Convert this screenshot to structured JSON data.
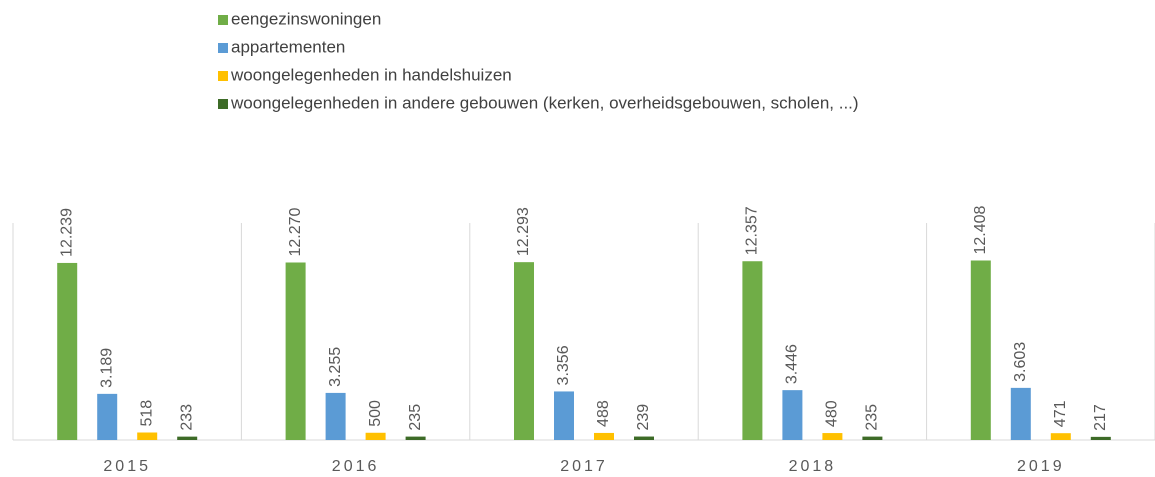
{
  "chart_data": {
    "type": "bar",
    "categories": [
      "2015",
      "2016",
      "2017",
      "2018",
      "2019"
    ],
    "series": [
      {
        "name": "eengezinswoningen",
        "color": "#70ad47",
        "values": [
          12239,
          12270,
          12293,
          12357,
          12408
        ],
        "value_labels": [
          "12.239",
          "12.270",
          "12.293",
          "12.357",
          "12.408"
        ]
      },
      {
        "name": "appartementen",
        "color": "#5b9bd5",
        "values": [
          3189,
          3255,
          3356,
          3446,
          3603
        ],
        "value_labels": [
          "3.189",
          "3.255",
          "3.356",
          "3.446",
          "3.603"
        ]
      },
      {
        "name": "woongelegenheden in handelshuizen",
        "color": "#ffc000",
        "values": [
          518,
          500,
          488,
          480,
          471
        ],
        "value_labels": [
          "518",
          "500",
          "488",
          "480",
          "471"
        ]
      },
      {
        "name": "woongelegenheden in andere gebouwen (kerken, overheidsgebouwen, scholen, ...)",
        "color": "#3d6b27",
        "values": [
          233,
          235,
          239,
          235,
          217
        ],
        "value_labels": [
          "233",
          "235",
          "239",
          "235",
          "217"
        ]
      }
    ],
    "ylim": [
      0,
      15000
    ]
  }
}
